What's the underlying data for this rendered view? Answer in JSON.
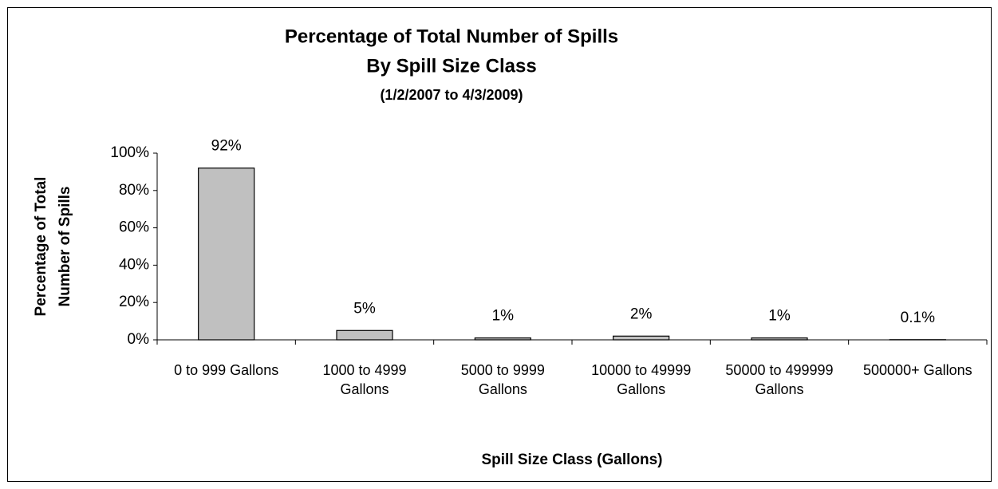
{
  "chart_data": {
    "type": "bar",
    "title": [
      "Percentage of Total Number of Spills",
      "By Spill Size Class"
    ],
    "subtitle": "(1/2/2007 to 4/3/2009)",
    "xlabel": "Spill Size Class (Gallons)",
    "ylabel": [
      "Percentage of Total",
      "Number of Spills"
    ],
    "categories": [
      "0 to 999 Gallons",
      "1000 to 4999 Gallons",
      "5000 to 9999 Gallons",
      "10000 to 49999 Gallons",
      "50000 to 499999 Gallons",
      "500000+ Gallons"
    ],
    "values": [
      92,
      5,
      1,
      2,
      1,
      0.1
    ],
    "value_labels": [
      "92%",
      "5%",
      "1%",
      "2%",
      "1%",
      "0.1%"
    ],
    "color": "#c0c0c0",
    "ylim": [
      0,
      100
    ],
    "yticks": [
      {
        "value": 0,
        "label": "0%"
      },
      {
        "value": 20,
        "label": "20%"
      },
      {
        "value": 40,
        "label": "40%"
      },
      {
        "value": 60,
        "label": "60%"
      },
      {
        "value": 80,
        "label": "80%"
      },
      {
        "value": 100,
        "label": "100%"
      }
    ],
    "grid": false
  }
}
